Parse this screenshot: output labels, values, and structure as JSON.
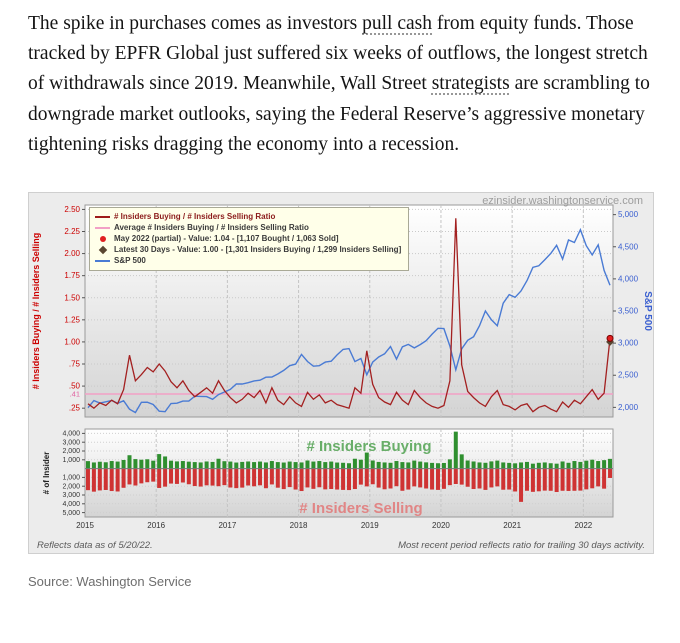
{
  "article": {
    "segments": [
      {
        "text": "The spike in purchases comes as investors ",
        "style": "plain"
      },
      {
        "text": "pull cash",
        "style": "underline"
      },
      {
        "text": " from equity funds. Those tracked by EPFR Global just suffered six weeks of outflows, the longest stretch of withdrawals since 2019. Meanwhile, Wall Street ",
        "style": "plain"
      },
      {
        "text": "strategists",
        "style": "underline"
      },
      {
        "text": " are scrambling to downgrade market outlooks, saying the Federal Reserve’s aggressive monetary tightening risks dragging the economy into a recession.",
        "style": "plain"
      }
    ]
  },
  "source_line": "Source: Washington Service",
  "chart_data": {
    "type": "line+bar",
    "watermark": "ezinsider.washingtonservice.com",
    "footnote_left": "Reflects data as of 5/20/22.",
    "footnote_right": "Most recent period reflects ratio for trailing 30 days activity.",
    "x_start": "2015-01",
    "x_interval": "monthly",
    "x_years": [
      "2015",
      "2016",
      "2017",
      "2018",
      "2019",
      "2020",
      "2021",
      "2022"
    ],
    "colors": {
      "ratio": "#a32020",
      "average": "#f2a0c6",
      "average_label": "#e060a0",
      "sp500": "#4a7bd4",
      "buy_bar": "#2f8f2f",
      "sell_bar": "#cf3333",
      "axis_red": "#cc0000",
      "axis_blue": "#3a5fd0",
      "buy_text": "#5aa75a",
      "sell_text": "#e27d7d"
    },
    "legend": [
      {
        "label": "# Insiders Buying / # Insiders Selling Ratio",
        "marker": "line",
        "color": "#9e1a1a",
        "text_color": "#8b1a1a"
      },
      {
        "label": "Average # Insiders Buying / # Insiders Selling Ratio",
        "marker": "line",
        "color": "#f2a0c6",
        "text_color": "#3a3a3a"
      },
      {
        "label": "May 2022 (partial) - Value: 1.04 - [1,107 Bought / 1,063 Sold]",
        "marker": "dot",
        "color": "#e02020",
        "text_color": "#3a3a3a"
      },
      {
        "label": "Latest 30 Days - Value: 1.00 - [1,301 Insiders Buying / 1,299 Insiders Selling]",
        "marker": "diamond",
        "color": "#5a4632",
        "text_color": "#3a3a3a"
      },
      {
        "label": "S&P 500",
        "marker": "line",
        "color": "#4a7bd4",
        "text_color": "#3a3a3a"
      }
    ],
    "top_chart": {
      "left_axis_title": "# Insiders Buying / # Insiders Selling",
      "right_axis_title": "S&P 500",
      "ratio_tick_values": [
        0.25,
        0.5,
        0.75,
        1.0,
        1.25,
        1.5,
        1.75,
        2.0,
        2.25,
        2.5
      ],
      "ratio_tick_labels": [
        ".25",
        ".50",
        ".75",
        "1.00",
        "1.25",
        "1.50",
        "1.75",
        "2.00",
        "2.25",
        "2.50"
      ],
      "sp500_tick_values": [
        2000,
        2500,
        3000,
        3500,
        4000,
        4500,
        5000
      ],
      "sp500_tick_labels": [
        "2,000",
        "2,500",
        "3,000",
        "3,500",
        "4,000",
        "4,500",
        "5,000"
      ],
      "average_ratio": {
        "value": 0.41,
        "label": ".41"
      },
      "end_markers": {
        "dot_value": 1.04,
        "diamond_value": 1.0
      },
      "ratio_series": [
        0.3,
        0.25,
        0.31,
        0.28,
        0.34,
        0.3,
        0.46,
        0.85,
        0.56,
        0.63,
        0.71,
        0.66,
        0.75,
        0.67,
        0.55,
        0.48,
        0.56,
        0.45,
        0.38,
        0.43,
        0.48,
        0.42,
        0.56,
        0.45,
        0.37,
        0.31,
        0.35,
        0.42,
        0.37,
        0.45,
        0.31,
        0.48,
        0.34,
        0.29,
        0.38,
        0.31,
        0.27,
        0.43,
        0.35,
        0.4,
        0.31,
        0.34,
        0.29,
        0.27,
        0.25,
        0.48,
        0.42,
        0.9,
        0.52,
        0.37,
        0.32,
        0.29,
        0.43,
        0.34,
        0.29,
        0.45,
        0.37,
        0.31,
        0.27,
        0.25,
        0.28,
        0.56,
        2.4,
        0.74,
        0.44,
        0.37,
        0.31,
        0.27,
        0.38,
        0.45,
        0.29,
        0.27,
        0.23,
        0.28,
        0.3,
        0.21,
        0.26,
        0.28,
        0.24,
        0.21,
        0.32,
        0.26,
        0.34,
        0.3,
        0.38,
        0.46,
        0.35,
        0.42,
        1.04
      ],
      "sp500_series": [
        1995,
        2105,
        2068,
        2086,
        2107,
        2063,
        2104,
        1972,
        1920,
        2079,
        2080,
        2044,
        1940,
        1932,
        2060,
        2065,
        2097,
        2099,
        2174,
        2171,
        2168,
        2126,
        2199,
        2239,
        2279,
        2364,
        2363,
        2384,
        2412,
        2423,
        2470,
        2472,
        2519,
        2575,
        2648,
        2674,
        2824,
        2714,
        2641,
        2648,
        2705,
        2718,
        2816,
        2902,
        2914,
        2712,
        2760,
        2507,
        2704,
        2784,
        2834,
        2946,
        2752,
        2942,
        2980,
        2926,
        2977,
        3038,
        3141,
        3231,
        3226,
        2954,
        2585,
        2912,
        3044,
        3100,
        3271,
        3500,
        3363,
        3270,
        3622,
        3756,
        3714,
        3811,
        3973,
        4181,
        4204,
        4298,
        4395,
        4523,
        4308,
        4605,
        4567,
        4766,
        4516,
        4374,
        4530,
        4132,
        3901
      ]
    },
    "bottom_chart": {
      "axis_title": "# of Insider",
      "buy_label": "# Insiders Buying",
      "sell_label": "# Insiders Selling",
      "buy_tick_values": [
        4000,
        3000,
        2000,
        1000
      ],
      "buy_tick_labels": [
        "4,000",
        "3,000",
        "2,000",
        "1,000"
      ],
      "sell_tick_values": [
        1000,
        2000,
        3000,
        4000,
        5000
      ],
      "sell_tick_labels": [
        "1,000",
        "2,000",
        "3,000",
        "4,000",
        "5,000"
      ],
      "buying": [
        850,
        700,
        780,
        720,
        860,
        800,
        980,
        1520,
        1080,
        1010,
        1060,
        900,
        1650,
        1380,
        900,
        820,
        860,
        790,
        740,
        700,
        810,
        760,
        1120,
        840,
        800,
        690,
        760,
        810,
        740,
        800,
        700,
        860,
        740,
        690,
        800,
        740,
        700,
        920,
        800,
        860,
        740,
        800,
        690,
        660,
        610,
        1120,
        1010,
        1820,
        920,
        760,
        700,
        660,
        860,
        740,
        700,
        910,
        800,
        710,
        650,
        610,
        640,
        1050,
        4200,
        1620,
        920,
        810,
        700,
        660,
        820,
        910,
        700,
        650,
        600,
        700,
        760,
        560,
        660,
        700,
        610,
        560,
        810,
        660,
        860,
        760,
        900,
        1010,
        860,
        960,
        1107
      ],
      "selling": [
        2450,
        2620,
        2480,
        2430,
        2550,
        2600,
        2180,
        1800,
        1920,
        1680,
        1550,
        1480,
        2200,
        2050,
        1700,
        1740,
        1580,
        1780,
        1980,
        2040,
        1900,
        1930,
        2000,
        1880,
        2150,
        2220,
        2160,
        1920,
        2010,
        1900,
        2230,
        1800,
        2170,
        2330,
        2100,
        2380,
        2550,
        2140,
        2300,
        2120,
        2360,
        2320,
        2380,
        2420,
        2440,
        2320,
        1820,
        2020,
        1780,
        2160,
        2350,
        2260,
        2000,
        2520,
        2380,
        2020,
        2140,
        2260,
        2380,
        2420,
        2300,
        1880,
        1750,
        1820,
        2060,
        2320,
        2260,
        2420,
        2140,
        2020,
        2400,
        2380,
        2600,
        3780,
        2520,
        2640,
        2580,
        2500,
        2520,
        2660,
        2520,
        2540,
        2520,
        2500,
        2360,
        2240,
        2020,
        2280,
        1063
      ]
    }
  }
}
